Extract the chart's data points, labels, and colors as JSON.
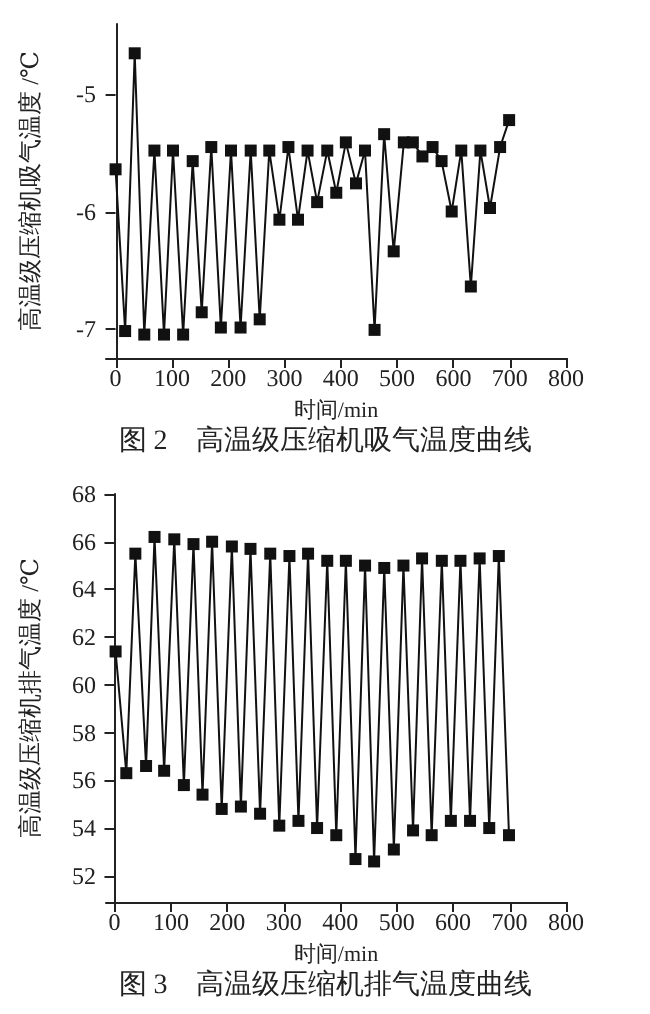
{
  "chart_data": [
    {
      "type": "line",
      "title": "图 2　高温级压缩机吸气温度曲线",
      "xlabel": "时间/min",
      "ylabel": "高温级压缩机吸气温度 /℃",
      "marker": "square",
      "line_style": "solid",
      "x": [
        0,
        17,
        34,
        51,
        69,
        86,
        102,
        120,
        137,
        153,
        170,
        187,
        205,
        222,
        240,
        256,
        273,
        291,
        307,
        324,
        341,
        358,
        376,
        392,
        409,
        427,
        443,
        460,
        477,
        494,
        512,
        528,
        545,
        563,
        579,
        597,
        614,
        631,
        648,
        665,
        683,
        699
      ],
      "series": [
        {
          "color": "#111111",
          "values": [
            -5.64,
            -7.02,
            -4.65,
            -7.05,
            -5.48,
            -7.05,
            -5.48,
            -7.05,
            -5.57,
            -6.86,
            -5.45,
            -6.99,
            -5.48,
            -6.99,
            -5.48,
            -6.92,
            -5.48,
            -6.07,
            -5.45,
            -6.07,
            -5.48,
            -5.92,
            -5.48,
            -5.84,
            -5.41,
            -5.76,
            -5.48,
            -7.01,
            -5.34,
            -6.34,
            -5.41,
            -5.41,
            -5.53,
            -5.45,
            -5.57,
            -6.0,
            -5.48,
            -6.64,
            -5.48,
            -5.97,
            -5.45,
            -5.22
          ]
        }
      ],
      "xlim": [
        -17,
        800
      ],
      "xticks": [
        0,
        100,
        200,
        300,
        400,
        500,
        600,
        700,
        800
      ],
      "ylim": [
        -7.25,
        -4.4
      ],
      "yticks": [
        -7,
        -6,
        -5
      ]
    },
    {
      "type": "line",
      "title": "图 3　高温级压缩机排气温度曲线",
      "xlabel": "时间/min",
      "ylabel": "高温级压缩机排气温度 /℃",
      "marker": "square",
      "line_style": "solid",
      "x": [
        2,
        21,
        37,
        56,
        71,
        88,
        106,
        123,
        140,
        156,
        173,
        190,
        208,
        224,
        241,
        258,
        276,
        292,
        310,
        326,
        343,
        359,
        377,
        393,
        410,
        427,
        444,
        460,
        478,
        495,
        512,
        529,
        545,
        562,
        580,
        596,
        613,
        630,
        647,
        664,
        681,
        699
      ],
      "series": [
        {
          "color": "#111111",
          "values": [
            61.4,
            56.3,
            65.5,
            56.6,
            66.2,
            56.4,
            66.1,
            55.8,
            65.9,
            55.4,
            66.0,
            54.8,
            65.8,
            54.9,
            65.7,
            54.6,
            65.5,
            54.1,
            65.4,
            54.3,
            65.5,
            54.0,
            65.2,
            53.7,
            65.2,
            52.7,
            65.0,
            52.6,
            64.9,
            53.1,
            65.0,
            53.9,
            65.3,
            53.7,
            65.2,
            54.3,
            65.2,
            54.3,
            65.3,
            54.0,
            65.4,
            53.7
          ]
        }
      ],
      "xlim": [
        -15,
        800
      ],
      "xticks": [
        0,
        100,
        200,
        300,
        400,
        500,
        600,
        700,
        800
      ],
      "ylim": [
        50.9,
        68
      ],
      "yticks": [
        52,
        54,
        56,
        58,
        60,
        62,
        64,
        66,
        68
      ]
    }
  ]
}
